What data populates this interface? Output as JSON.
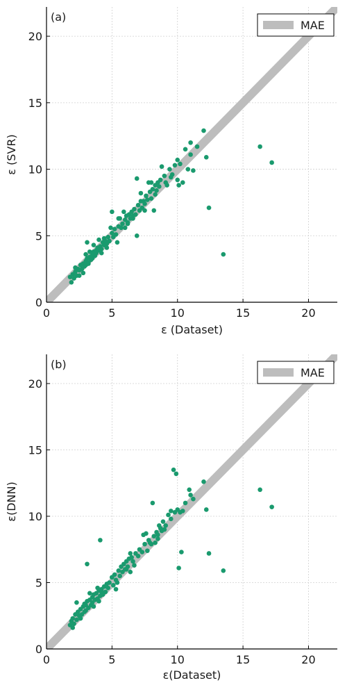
{
  "colors": {
    "points": "#1a9a6e",
    "mae_band": "#bdbdbd",
    "grid": "#cfcfcf",
    "axis": "#000000"
  },
  "chart_data": [
    {
      "type": "scatter",
      "panel_label": "(a)",
      "xlabel": "ε (Dataset)",
      "ylabel": "ε (SVR)",
      "xlim": [
        0,
        22.2
      ],
      "ylim": [
        0,
        22.2
      ],
      "xticks": [
        0,
        5,
        10,
        15,
        20
      ],
      "yticks": [
        0,
        5,
        10,
        15,
        20
      ],
      "grid": true,
      "legend": {
        "position": "top-right",
        "entries": [
          "MAE"
        ]
      },
      "mae_band": {
        "from": [
          0,
          0
        ],
        "to": [
          22.2,
          22.2
        ]
      },
      "series": [
        {
          "points": [
            [
              1.8,
              1.9
            ],
            [
              2.0,
              2.1
            ],
            [
              2.1,
              1.8
            ],
            [
              2.2,
              2.3
            ],
            [
              2.3,
              2.0
            ],
            [
              2.4,
              2.5
            ],
            [
              2.5,
              2.4
            ],
            [
              2.6,
              2.8
            ],
            [
              2.7,
              2.5
            ],
            [
              2.8,
              2.9
            ],
            [
              2.9,
              2.7
            ],
            [
              3.0,
              3.1
            ],
            [
              3.0,
              2.8
            ],
            [
              3.1,
              3.3
            ],
            [
              3.2,
              3.0
            ],
            [
              3.2,
              2.9
            ],
            [
              3.3,
              3.4
            ],
            [
              3.4,
              3.2
            ],
            [
              3.5,
              3.6
            ],
            [
              3.5,
              3.3
            ],
            [
              3.6,
              3.8
            ],
            [
              3.7,
              3.5
            ],
            [
              3.8,
              3.9
            ],
            [
              3.8,
              3.7
            ],
            [
              3.9,
              4.1
            ],
            [
              4.0,
              3.9
            ],
            [
              4.1,
              4.2
            ],
            [
              4.2,
              4.0
            ],
            [
              4.3,
              4.5
            ],
            [
              4.4,
              4.3
            ],
            [
              4.5,
              4.6
            ],
            [
              4.6,
              4.4
            ],
            [
              4.7,
              4.9
            ],
            [
              4.8,
              4.6
            ],
            [
              3.1,
              4.5
            ],
            [
              3.6,
              4.3
            ],
            [
              2.5,
              2.0
            ],
            [
              3.0,
              3.6
            ],
            [
              2.8,
              2.2
            ],
            [
              4.0,
              4.7
            ],
            [
              4.2,
              3.7
            ],
            [
              4.6,
              4.1
            ],
            [
              3.3,
              3.8
            ],
            [
              2.2,
              2.6
            ],
            [
              1.9,
              1.5
            ],
            [
              5.0,
              5.2
            ],
            [
              5.1,
              4.9
            ],
            [
              5.2,
              5.5
            ],
            [
              5.3,
              5.1
            ],
            [
              5.5,
              5.7
            ],
            [
              5.6,
              6.3
            ],
            [
              5.7,
              5.6
            ],
            [
              5.8,
              5.9
            ],
            [
              5.9,
              6.8
            ],
            [
              6.0,
              6.2
            ],
            [
              6.1,
              6.5
            ],
            [
              6.2,
              6.0
            ],
            [
              6.3,
              6.6
            ],
            [
              6.4,
              6.3
            ],
            [
              6.5,
              6.8
            ],
            [
              6.6,
              6.5
            ],
            [
              6.7,
              7.0
            ],
            [
              6.8,
              6.6
            ],
            [
              6.9,
              5.0
            ],
            [
              7.0,
              7.3
            ],
            [
              7.1,
              6.9
            ],
            [
              7.2,
              8.2
            ],
            [
              7.3,
              7.1
            ],
            [
              7.4,
              7.6
            ],
            [
              7.5,
              7.4
            ],
            [
              7.6,
              8.0
            ],
            [
              7.7,
              7.7
            ],
            [
              7.8,
              9.0
            ],
            [
              7.9,
              8.3
            ],
            [
              8.0,
              7.8
            ],
            [
              8.1,
              8.5
            ],
            [
              8.2,
              6.9
            ],
            [
              8.3,
              8.8
            ],
            [
              8.4,
              8.4
            ],
            [
              8.5,
              9.0
            ],
            [
              8.6,
              8.7
            ],
            [
              8.7,
              9.2
            ],
            [
              8.8,
              10.2
            ],
            [
              9.0,
              9.5
            ],
            [
              9.2,
              8.8
            ],
            [
              9.4,
              10.0
            ],
            [
              9.6,
              9.6
            ],
            [
              9.8,
              10.3
            ],
            [
              10.0,
              9.2
            ],
            [
              10.1,
              8.8
            ],
            [
              10.2,
              10.4
            ],
            [
              10.4,
              9.0
            ],
            [
              10.6,
              11.5
            ],
            [
              10.8,
              10.0
            ],
            [
              11.0,
              12.0
            ],
            [
              11.2,
              9.9
            ],
            [
              11.5,
              11.7
            ],
            [
              12.0,
              12.9
            ],
            [
              12.2,
              10.9
            ],
            [
              12.4,
              7.1
            ],
            [
              13.5,
              3.6
            ],
            [
              16.3,
              11.7
            ],
            [
              17.2,
              10.5
            ],
            [
              5.0,
              6.8
            ],
            [
              5.4,
              4.5
            ],
            [
              6.2,
              5.9
            ],
            [
              7.5,
              6.9
            ],
            [
              8.0,
              9.0
            ],
            [
              9.1,
              9.0
            ],
            [
              6.9,
              9.3
            ],
            [
              4.9,
              5.6
            ],
            [
              5.5,
              6.3
            ],
            [
              6.0,
              5.6
            ],
            [
              6.6,
              6.3
            ],
            [
              7.2,
              7.6
            ],
            [
              8.3,
              8.1
            ],
            [
              9.5,
              9.4
            ],
            [
              10.0,
              10.7
            ],
            [
              11.0,
              11.1
            ],
            [
              4.4,
              4.8
            ]
          ]
        }
      ]
    },
    {
      "type": "scatter",
      "panel_label": "(b)",
      "xlabel": "ε(Dataset)",
      "ylabel": "ε(DNN)",
      "xlim": [
        0,
        22.2
      ],
      "ylim": [
        0,
        22.2
      ],
      "xticks": [
        0,
        5,
        10,
        15,
        20
      ],
      "yticks": [
        0,
        5,
        10,
        15,
        20
      ],
      "grid": true,
      "legend": {
        "position": "top-right",
        "entries": [
          "MAE"
        ]
      },
      "mae_band": {
        "from": [
          0,
          0
        ],
        "to": [
          22.2,
          22.2
        ]
      },
      "series": [
        {
          "points": [
            [
              1.8,
              1.8
            ],
            [
              1.9,
              2.1
            ],
            [
              2.0,
              2.3
            ],
            [
              2.1,
              1.9
            ],
            [
              2.2,
              2.6
            ],
            [
              2.3,
              2.2
            ],
            [
              2.4,
              2.8
            ],
            [
              2.5,
              2.5
            ],
            [
              2.6,
              3.0
            ],
            [
              2.7,
              2.6
            ],
            [
              2.8,
              3.2
            ],
            [
              2.9,
              2.8
            ],
            [
              3.0,
              3.3
            ],
            [
              3.0,
              2.9
            ],
            [
              3.1,
              3.6
            ],
            [
              3.2,
              3.1
            ],
            [
              3.3,
              3.7
            ],
            [
              3.4,
              3.3
            ],
            [
              3.5,
              3.9
            ],
            [
              3.5,
              3.5
            ],
            [
              3.6,
              4.1
            ],
            [
              3.7,
              3.7
            ],
            [
              3.8,
              4.2
            ],
            [
              3.9,
              3.8
            ],
            [
              4.0,
              4.4
            ],
            [
              4.1,
              4.0
            ],
            [
              4.2,
              4.5
            ],
            [
              4.3,
              4.1
            ],
            [
              4.4,
              4.7
            ],
            [
              4.5,
              4.3
            ],
            [
              4.6,
              4.9
            ],
            [
              4.7,
              4.6
            ],
            [
              2.3,
              3.5
            ],
            [
              3.1,
              6.4
            ],
            [
              4.1,
              8.2
            ],
            [
              2.6,
              2.3
            ],
            [
              3.3,
              4.2
            ],
            [
              3.9,
              4.6
            ],
            [
              2.0,
              1.6
            ],
            [
              4.8,
              5.0
            ],
            [
              5.0,
              5.4
            ],
            [
              5.1,
              4.8
            ],
            [
              5.2,
              5.6
            ],
            [
              5.3,
              5.2
            ],
            [
              5.5,
              5.9
            ],
            [
              5.6,
              5.5
            ],
            [
              5.7,
              6.2
            ],
            [
              5.8,
              5.8
            ],
            [
              5.9,
              6.4
            ],
            [
              6.0,
              6.0
            ],
            [
              6.1,
              6.6
            ],
            [
              6.2,
              6.2
            ],
            [
              6.3,
              6.8
            ],
            [
              6.4,
              5.8
            ],
            [
              6.5,
              6.9
            ],
            [
              6.6,
              6.6
            ],
            [
              6.8,
              7.2
            ],
            [
              7.0,
              7.0
            ],
            [
              7.1,
              7.5
            ],
            [
              7.3,
              7.3
            ],
            [
              7.4,
              8.6
            ],
            [
              7.5,
              7.9
            ],
            [
              7.6,
              8.7
            ],
            [
              7.7,
              7.4
            ],
            [
              7.8,
              8.2
            ],
            [
              8.0,
              7.9
            ],
            [
              8.1,
              11.0
            ],
            [
              8.2,
              8.5
            ],
            [
              8.3,
              8.0
            ],
            [
              8.4,
              8.8
            ],
            [
              8.5,
              8.6
            ],
            [
              8.6,
              9.3
            ],
            [
              8.7,
              9.1
            ],
            [
              8.9,
              9.6
            ],
            [
              9.1,
              9.3
            ],
            [
              9.3,
              10.1
            ],
            [
              9.5,
              10.4
            ],
            [
              9.7,
              13.5
            ],
            [
              9.9,
              13.2
            ],
            [
              10.0,
              10.5
            ],
            [
              10.1,
              6.1
            ],
            [
              10.3,
              7.3
            ],
            [
              10.4,
              10.4
            ],
            [
              10.6,
              11.0
            ],
            [
              10.9,
              12.0
            ],
            [
              11.2,
              11.3
            ],
            [
              12.0,
              12.6
            ],
            [
              12.2,
              10.5
            ],
            [
              12.4,
              7.2
            ],
            [
              13.5,
              5.9
            ],
            [
              16.3,
              12.0
            ],
            [
              17.2,
              10.7
            ],
            [
              5.4,
              5.0
            ],
            [
              6.1,
              6.0
            ],
            [
              5.0,
              5.4
            ],
            [
              4.2,
              4.3
            ],
            [
              7.9,
              8.0
            ],
            [
              9.0,
              9.0
            ],
            [
              9.8,
              10.3
            ],
            [
              8.5,
              8.3
            ],
            [
              6.7,
              6.3
            ],
            [
              5.3,
              4.5
            ],
            [
              6.4,
              7.2
            ],
            [
              8.8,
              8.9
            ],
            [
              9.5,
              9.8
            ],
            [
              10.2,
              10.3
            ],
            [
              11.0,
              11.6
            ],
            [
              4.0,
              3.6
            ],
            [
              3.6,
              3.2
            ],
            [
              2.9,
              3.4
            ]
          ]
        }
      ]
    }
  ]
}
